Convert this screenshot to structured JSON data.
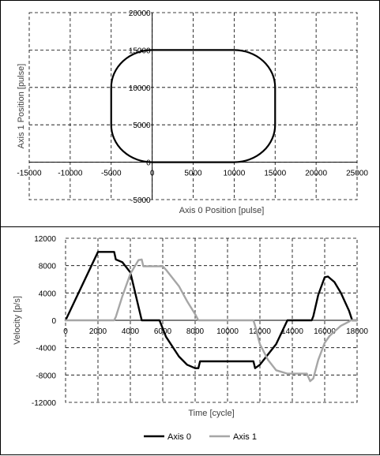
{
  "chart_data": [
    {
      "type": "line",
      "xlabel": "Axis 0 Position [pulse]",
      "ylabel": "Axis 1 Position [pulse]",
      "xlim": [
        -15000,
        25000
      ],
      "ylim": [
        -5000,
        20000
      ],
      "xticks": [
        -15000,
        -10000,
        -5000,
        0,
        5000,
        10000,
        15000,
        20000,
        25000
      ],
      "yticks": [
        -5000,
        0,
        5000,
        10000,
        15000,
        20000
      ],
      "grid": true,
      "series": [
        {
          "color": "#000000",
          "shape": "rounded-rectangle",
          "x_range": [
            -5000,
            15000
          ],
          "y_range": [
            0,
            15000
          ],
          "corner_radius": 5000,
          "points": [
            [
              0,
              0
            ],
            [
              10000,
              0
            ],
            [
              12588,
              341
            ],
            [
              15000,
              5000
            ],
            [
              15000,
              10000
            ],
            [
              12588,
              14659
            ],
            [
              10000,
              15000
            ],
            [
              0,
              15000
            ],
            [
              -2588,
              14659
            ],
            [
              -5000,
              10000
            ],
            [
              -5000,
              5000
            ],
            [
              -2588,
              341
            ],
            [
              0,
              0
            ]
          ]
        }
      ]
    },
    {
      "type": "line",
      "xlabel": "Time [cycle]",
      "ylabel": "Velocity [p/s]",
      "xlim": [
        0,
        18000
      ],
      "ylim": [
        -12000,
        12000
      ],
      "xticks": [
        0,
        2000,
        4000,
        6000,
        8000,
        10000,
        12000,
        14000,
        16000,
        18000
      ],
      "yticks": [
        -12000,
        -8000,
        -4000,
        0,
        4000,
        8000,
        12000
      ],
      "grid": true,
      "legend": "bottom",
      "series": [
        {
          "name": "Axis 0",
          "color": "#000000",
          "x": [
            0,
            2000,
            3000,
            3100,
            3500,
            4000,
            4700,
            5700,
            5800,
            6200,
            7000,
            7500,
            8000,
            8200,
            8300,
            11600,
            11700,
            12000,
            13000,
            13700,
            15200,
            15300,
            15600,
            16000,
            16200,
            16600,
            17000,
            17500,
            17700,
            18000
          ],
          "y": [
            0,
            10000,
            10000,
            8900,
            8500,
            7000,
            0,
            0,
            0,
            -2400,
            -5300,
            -6500,
            -7000,
            -7000,
            -6000,
            -6000,
            -7000,
            -6500,
            -3500,
            0,
            0,
            600,
            3700,
            6300,
            6400,
            5600,
            4000,
            1400,
            0,
            0
          ]
        },
        {
          "name": "Axis 1",
          "color": "#a6a6a6",
          "x": [
            0,
            3000,
            3100,
            3500,
            4000,
            4500,
            4700,
            4800,
            6000,
            6200,
            7000,
            7500,
            8000,
            8200,
            8300,
            11600,
            11700,
            12000,
            12500,
            13000,
            13700,
            14900,
            15100,
            15300,
            15600,
            16000,
            16300,
            17000,
            17500,
            17600,
            18000
          ],
          "y": [
            0,
            0,
            500,
            3500,
            6800,
            8800,
            8900,
            7900,
            7900,
            7400,
            5000,
            2800,
            900,
            0,
            0,
            0,
            -800,
            -3500,
            -5800,
            -7300,
            -7800,
            -7800,
            -8900,
            -8500,
            -5800,
            -3300,
            -2300,
            -800,
            -200,
            0,
            0
          ]
        }
      ]
    }
  ],
  "colors": {
    "axis0": "#000000",
    "axis1": "#a6a6a6",
    "grid": "#000000"
  }
}
